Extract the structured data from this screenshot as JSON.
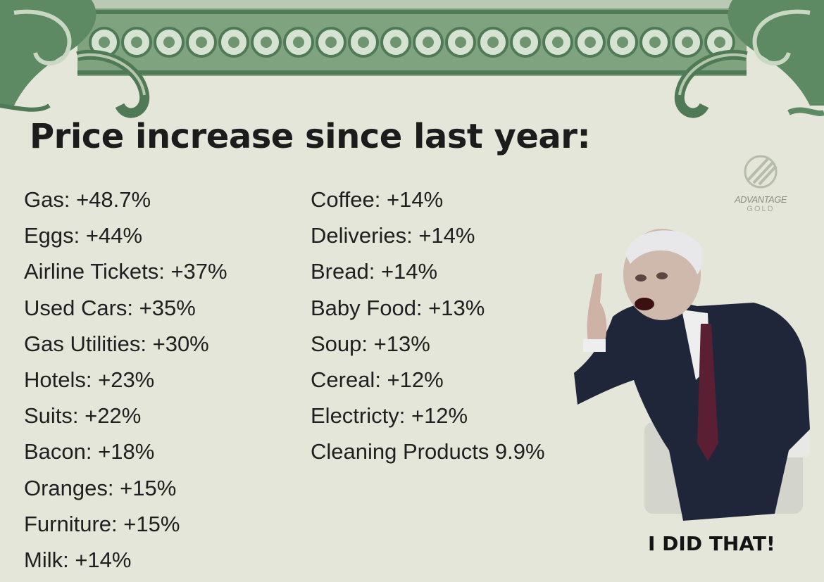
{
  "title": "Price increase since last year:",
  "left_items": [
    "Gas: +48.7%",
    "Eggs: +44%",
    "Airline Tickets: +37%",
    "Used Cars: +35%",
    "Gas Utilities: +30%",
    "Hotels: +23%",
    "Suits: +22%",
    "Bacon: +18%",
    "Oranges: +15%",
    "Furniture: +15%",
    "Milk: +14%"
  ],
  "right_items": [
    "Coffee: +14%",
    "Deliveries: +14%",
    "Bread: +14%",
    "Baby Food: +13%",
    "Soup: +13%",
    "Cereal: +12%",
    "Electricty: +12%",
    "Cleaning Products 9.9%"
  ],
  "logo": {
    "name": "ADVANTAGE",
    "sub": "GOLD"
  },
  "caption": "I DID THAT!",
  "colors": {
    "paper": "#e4e6d9",
    "banknote_green": "#6f9470",
    "text": "#1f1f1f"
  }
}
